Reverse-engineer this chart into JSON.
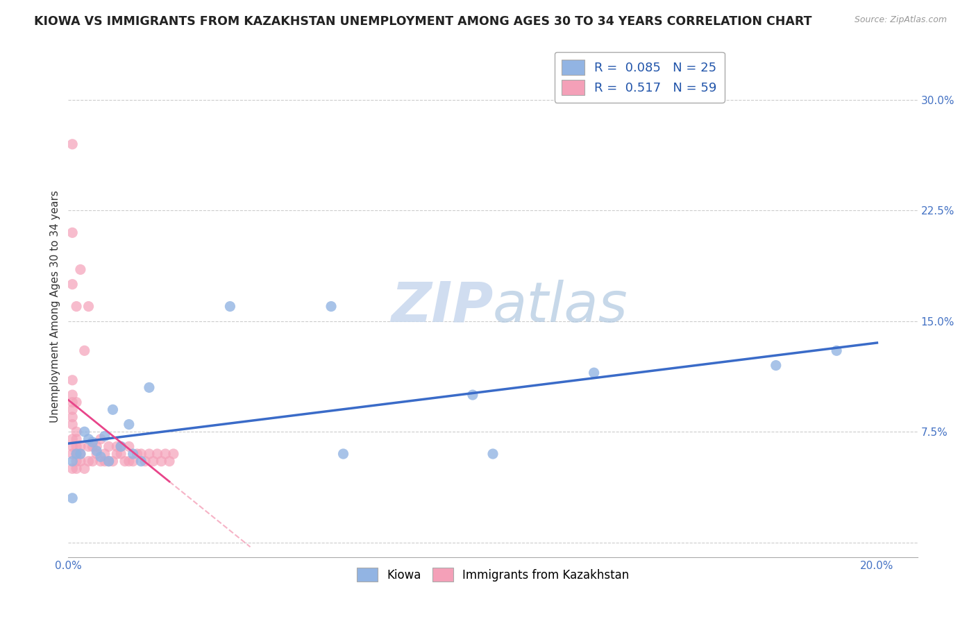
{
  "title": "KIOWA VS IMMIGRANTS FROM KAZAKHSTAN UNEMPLOYMENT AMONG AGES 30 TO 34 YEARS CORRELATION CHART",
  "source": "Source: ZipAtlas.com",
  "ylabel": "Unemployment Among Ages 30 to 34 years",
  "xlim": [
    0.0,
    0.21
  ],
  "ylim": [
    -0.01,
    0.33
  ],
  "xticks": [
    0.0,
    0.025,
    0.05,
    0.075,
    0.1,
    0.125,
    0.15,
    0.175,
    0.2
  ],
  "yticks": [
    0.0,
    0.075,
    0.15,
    0.225,
    0.3
  ],
  "kiowa_R": 0.085,
  "kiowa_N": 25,
  "kaz_R": 0.517,
  "kaz_N": 59,
  "kiowa_color": "#92b4e3",
  "kaz_color": "#f4a0b8",
  "kiowa_line_color": "#3a6bc8",
  "kaz_line_color": "#e8458a",
  "kaz_line_dashed_color": "#f4a0b8",
  "watermark_color": "#cfddf0",
  "background_color": "#ffffff",
  "grid_color": "#cccccc",
  "title_fontsize": 12.5,
  "axis_label_fontsize": 11,
  "tick_fontsize": 11,
  "legend_fontsize": 13,
  "kiowa_x": [
    0.001,
    0.001,
    0.002,
    0.003,
    0.004,
    0.005,
    0.006,
    0.007,
    0.008,
    0.009,
    0.01,
    0.011,
    0.013,
    0.015,
    0.016,
    0.018,
    0.02,
    0.04,
    0.065,
    0.068,
    0.1,
    0.105,
    0.13,
    0.175,
    0.19
  ],
  "kiowa_y": [
    0.03,
    0.055,
    0.06,
    0.06,
    0.075,
    0.07,
    0.068,
    0.062,
    0.058,
    0.072,
    0.055,
    0.09,
    0.065,
    0.08,
    0.06,
    0.055,
    0.105,
    0.16,
    0.16,
    0.06,
    0.1,
    0.06,
    0.115,
    0.12,
    0.13
  ],
  "kaz_x": [
    0.001,
    0.001,
    0.001,
    0.001,
    0.001,
    0.001,
    0.001,
    0.001,
    0.001,
    0.001,
    0.001,
    0.001,
    0.001,
    0.002,
    0.002,
    0.002,
    0.002,
    0.002,
    0.002,
    0.002,
    0.002,
    0.003,
    0.003,
    0.003,
    0.003,
    0.004,
    0.004,
    0.005,
    0.005,
    0.005,
    0.006,
    0.006,
    0.007,
    0.007,
    0.008,
    0.008,
    0.009,
    0.009,
    0.01,
    0.01,
    0.011,
    0.012,
    0.012,
    0.013,
    0.013,
    0.014,
    0.015,
    0.015,
    0.016,
    0.017,
    0.018,
    0.019,
    0.02,
    0.021,
    0.022,
    0.023,
    0.024,
    0.025,
    0.026
  ],
  "kaz_y": [
    0.05,
    0.06,
    0.065,
    0.07,
    0.08,
    0.085,
    0.09,
    0.095,
    0.1,
    0.11,
    0.175,
    0.21,
    0.27,
    0.05,
    0.055,
    0.06,
    0.065,
    0.07,
    0.075,
    0.095,
    0.16,
    0.055,
    0.06,
    0.065,
    0.185,
    0.05,
    0.13,
    0.055,
    0.065,
    0.16,
    0.055,
    0.065,
    0.06,
    0.065,
    0.055,
    0.07,
    0.055,
    0.06,
    0.055,
    0.065,
    0.055,
    0.06,
    0.065,
    0.06,
    0.065,
    0.055,
    0.055,
    0.065,
    0.055,
    0.06,
    0.06,
    0.055,
    0.06,
    0.055,
    0.06,
    0.055,
    0.06,
    0.055,
    0.06
  ]
}
